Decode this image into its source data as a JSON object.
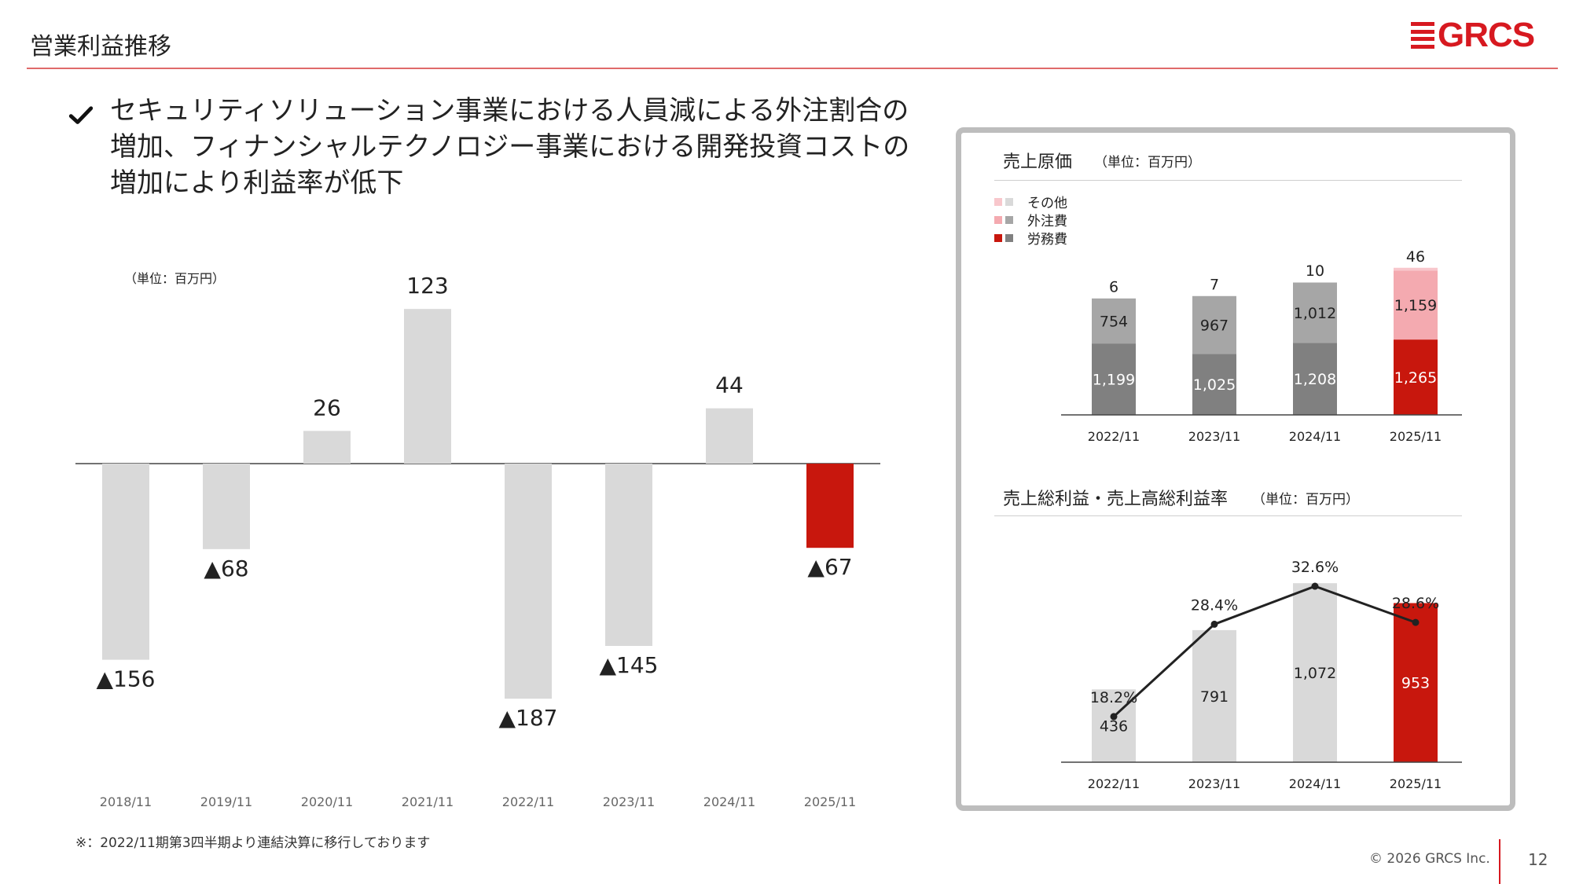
{
  "header": {
    "title": "営業利益推移",
    "logo_text": "GRCS"
  },
  "bullet": {
    "text": "セキュリティソリューション事業における人員減による外注割合の増加、フィナンシャルテクノロジー事業における開発投資コストの増加により利益率が低下"
  },
  "colors": {
    "accent": "#c8170d",
    "neutral_bar": "#d9d9d9",
    "labor": "#808080",
    "outsourcing": "#a6a6a6",
    "other": "#d9d9d9",
    "accent_outsourcing": "#f4aab0",
    "accent_other": "#f8c7cc"
  },
  "chart_data": [
    {
      "type": "bar",
      "title": "営業利益",
      "unit": "（単位：百万円）",
      "categories": [
        "2018/11",
        "2019/11",
        "2020/11",
        "2021/11",
        "2022/11",
        "2023/11",
        "2024/11",
        "2025/11"
      ],
      "values": [
        -156,
        -68,
        26,
        123,
        -187,
        -145,
        44,
        -67
      ],
      "labels": [
        "▲156",
        "▲68",
        "26",
        "123",
        "▲187",
        "▲145",
        "44",
        "▲67"
      ],
      "highlight_index": 7,
      "ylim": [
        -200,
        130
      ]
    },
    {
      "type": "bar",
      "stacked": true,
      "title": "売上原価",
      "unit": "（単位：百万円）",
      "categories": [
        "2022/11",
        "2023/11",
        "2024/11",
        "2025/11"
      ],
      "series": [
        {
          "name": "労務費",
          "values": [
            1199,
            1025,
            1208,
            1265
          ],
          "labels": [
            "1,199",
            "1,025",
            "1,208",
            "1,265"
          ]
        },
        {
          "name": "外注費",
          "values": [
            754,
            967,
            1012,
            1159
          ],
          "labels": [
            "754",
            "967",
            "1,012",
            "1,159"
          ]
        },
        {
          "name": "その他",
          "values": [
            6,
            7,
            10,
            46
          ],
          "labels": [
            "6",
            "7",
            "10",
            "46"
          ]
        }
      ],
      "legend": [
        "その他",
        "外注費",
        "労務費"
      ],
      "highlight_index": 3
    },
    {
      "type": "bar",
      "title": "売上総利益・売上高総利益率",
      "unit": "（単位：百万円）",
      "categories": [
        "2022/11",
        "2023/11",
        "2024/11",
        "2025/11"
      ],
      "values": [
        436,
        791,
        1072,
        953
      ],
      "labels": [
        "436",
        "791",
        "1,072",
        "953"
      ],
      "line_series": {
        "name": "売上高総利益率",
        "values": [
          18.2,
          28.4,
          32.6,
          28.6
        ],
        "labels": [
          "18.2%",
          "28.4%",
          "32.6%",
          "28.6%"
        ]
      },
      "highlight_index": 3
    }
  ],
  "footer": {
    "note": "※：2022/11期第3四半期より連結決算に移行しております",
    "copyright": "© 2026 GRCS Inc.",
    "page": "12"
  }
}
